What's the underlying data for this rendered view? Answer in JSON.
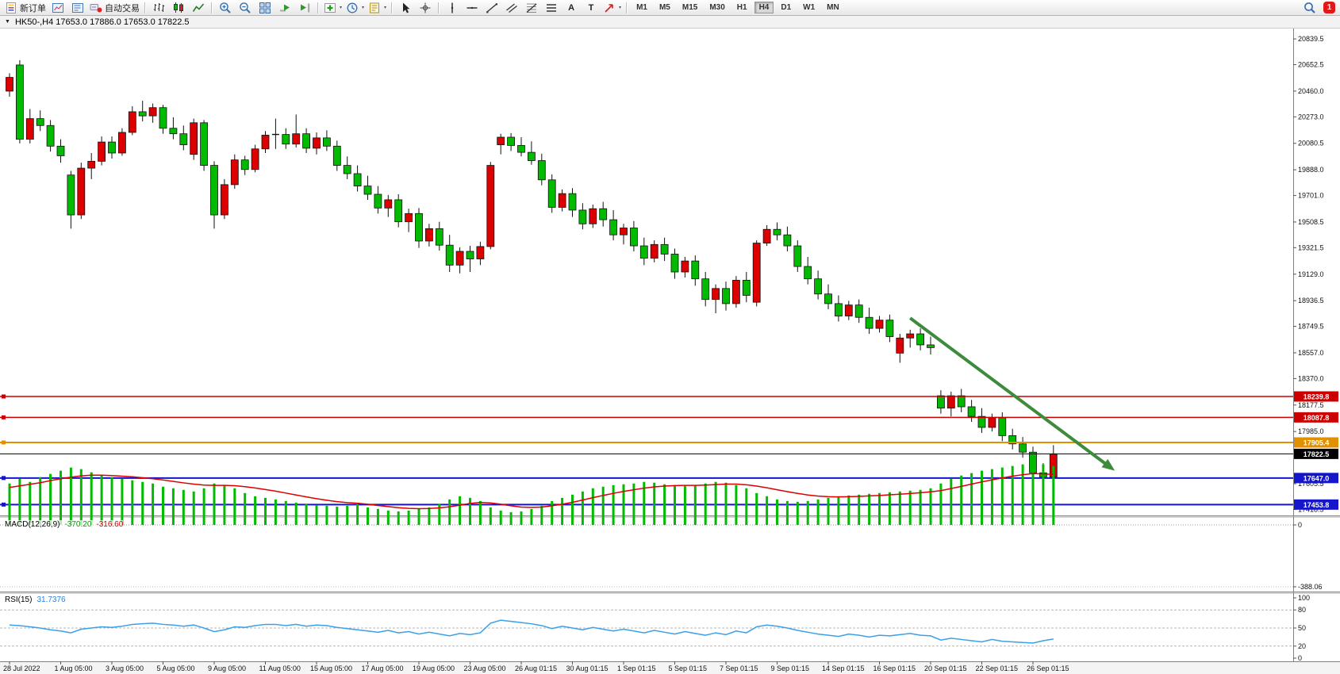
{
  "toolbar": {
    "buttons": [
      {
        "name": "new-order",
        "label": "新订单"
      },
      {
        "name": "chart-window"
      },
      {
        "name": "market-watch"
      },
      {
        "name": "autotrading",
        "label": "自动交易"
      },
      {
        "type": "sep"
      },
      {
        "name": "bar-chart"
      },
      {
        "name": "candlestick-chart"
      },
      {
        "name": "line-chart"
      },
      {
        "type": "sep"
      },
      {
        "name": "zoom-in"
      },
      {
        "name": "zoom-out"
      },
      {
        "name": "tile-windows"
      },
      {
        "name": "auto-scroll"
      },
      {
        "name": "chart-shift"
      },
      {
        "type": "sep"
      },
      {
        "name": "indicators-add",
        "caret": true
      },
      {
        "name": "periods",
        "caret": true
      },
      {
        "name": "templates",
        "caret": true
      },
      {
        "type": "sep"
      },
      {
        "name": "cursor"
      },
      {
        "name": "crosshair"
      },
      {
        "type": "sep"
      },
      {
        "name": "vertical-line"
      },
      {
        "name": "horizontal-line"
      },
      {
        "name": "trendline"
      },
      {
        "name": "channel"
      },
      {
        "name": "fibonacci"
      },
      {
        "name": "levels"
      },
      {
        "name": "text-tool",
        "label": "A"
      },
      {
        "name": "text-label-tool",
        "label": "T"
      },
      {
        "name": "arrows-tool",
        "caret": true
      },
      {
        "type": "sep"
      }
    ],
    "timeframes": [
      "M1",
      "M5",
      "M15",
      "M30",
      "H1",
      "H4",
      "D1",
      "W1",
      "MN"
    ],
    "active_timeframe": "H4",
    "notification_count": "1"
  },
  "chart_data": [
    {
      "type": "candlestick",
      "title": "HK50-,H4 17653.0 17886.0 17653.0 17822.5",
      "symbol": "HK50-",
      "timeframe": "H4",
      "ohlc_label": {
        "open": "17653.0",
        "high": "17886.0",
        "low": "17653.0",
        "close": "17822.5"
      },
      "up_color": "#dd0000",
      "down_color": "#00bb00",
      "wick_color": "#111111",
      "price_range": [
        17375,
        20915
      ],
      "y_ticks": [
        "20839.5",
        "20652.5",
        "20460.0",
        "20273.0",
        "20080.5",
        "19888.0",
        "19701.0",
        "19508.5",
        "19321.5",
        "19129.0",
        "18936.5",
        "18749.5",
        "18557.0",
        "18370.0",
        "18177.5",
        "17985.0",
        "17605.5",
        "17418.5"
      ],
      "hlines": [
        {
          "price": 18239.8,
          "color": "#cc0000",
          "width": 1.5,
          "badge": "18239.8",
          "handle": true
        },
        {
          "price": 18087.8,
          "color": "#cc0000",
          "width": 1.5,
          "badge": "18087.8",
          "handle": true
        },
        {
          "price": 17905.4,
          "color": "#e09000",
          "width": 2,
          "badge": "17905.4",
          "handle": true
        },
        {
          "price": 17822.5,
          "color": "#000000",
          "width": 1,
          "badge": "17822.5",
          "handle": false
        },
        {
          "price": 17647.0,
          "color": "#1515cc",
          "width": 2,
          "badge": "17647.0",
          "handle": true
        },
        {
          "price": 17453.8,
          "color": "#1515cc",
          "width": 2,
          "badge": "17453.8",
          "handle": true
        }
      ],
      "trend_arrow": {
        "from": {
          "index": 88,
          "price": 18810
        },
        "to": {
          "index": 108,
          "price": 17700
        },
        "color": "#3d8b3d"
      },
      "x_axis": {
        "label_every": 5,
        "labels": [
          "28 Jul 2022",
          "1 Aug 05:00",
          "3 Aug 05:00",
          "5 Aug 05:00",
          "9 Aug 05:00",
          "11 Aug 05:00",
          "15 Aug 05:00",
          "17 Aug 05:00",
          "19 Aug 05:00",
          "23 Aug 05:00",
          "26 Aug 01:15",
          "30 Aug 01:15",
          "1 Sep 01:15",
          "5 Sep 01:15",
          "7 Sep 01:15",
          "9 Sep 01:15",
          "14 Sep 01:15",
          "16 Sep 01:15",
          "20 Sep 01:15",
          "22 Sep 01:15",
          "26 Sep 01:15"
        ]
      },
      "candles": [
        [
          20460,
          20590,
          20420,
          20560
        ],
        [
          20650,
          20685,
          20080,
          20110
        ],
        [
          20110,
          20330,
          20080,
          20260
        ],
        [
          20260,
          20320,
          20170,
          20210
        ],
        [
          20210,
          20250,
          20020,
          20060
        ],
        [
          20060,
          20110,
          19940,
          19990
        ],
        [
          19850,
          19880,
          19460,
          19560
        ],
        [
          19560,
          19940,
          19530,
          19900
        ],
        [
          19900,
          20010,
          19820,
          19950
        ],
        [
          19950,
          20130,
          19920,
          20090
        ],
        [
          20090,
          20130,
          19970,
          20010
        ],
        [
          20010,
          20190,
          19990,
          20160
        ],
        [
          20160,
          20350,
          20140,
          20310
        ],
        [
          20310,
          20390,
          20240,
          20280
        ],
        [
          20280,
          20370,
          20230,
          20340
        ],
        [
          20340,
          20360,
          20150,
          20190
        ],
        [
          20190,
          20270,
          20110,
          20150
        ],
        [
          20150,
          20210,
          20030,
          20070
        ],
        [
          20000,
          20260,
          19960,
          20230
        ],
        [
          20230,
          20250,
          19880,
          19920
        ],
        [
          19920,
          19950,
          19460,
          19560
        ],
        [
          19560,
          19820,
          19530,
          19780
        ],
        [
          19780,
          20000,
          19750,
          19960
        ],
        [
          19960,
          19990,
          19850,
          19890
        ],
        [
          19890,
          20070,
          19870,
          20040
        ],
        [
          20040,
          20170,
          20010,
          20140
        ],
        [
          20140,
          20260,
          20040,
          20145
        ],
        [
          20145,
          20190,
          20040,
          20075
        ],
        [
          20075,
          20290,
          20050,
          20150
        ],
        [
          20150,
          20190,
          20010,
          20045
        ],
        [
          20045,
          20160,
          20000,
          20120
        ],
        [
          20120,
          20175,
          20025,
          20060
        ],
        [
          20060,
          20100,
          19880,
          19920
        ],
        [
          19920,
          19985,
          19820,
          19860
        ],
        [
          19860,
          19920,
          19730,
          19770
        ],
        [
          19770,
          19845,
          19670,
          19710
        ],
        [
          19710,
          19770,
          19570,
          19610
        ],
        [
          19610,
          19705,
          19545,
          19670
        ],
        [
          19670,
          19710,
          19470,
          19510
        ],
        [
          19510,
          19605,
          19435,
          19570
        ],
        [
          19570,
          19610,
          19320,
          19370
        ],
        [
          19370,
          19495,
          19330,
          19460
        ],
        [
          19460,
          19510,
          19300,
          19340
        ],
        [
          19340,
          19415,
          19145,
          19195
        ],
        [
          19195,
          19325,
          19135,
          19295
        ],
        [
          19295,
          19335,
          19145,
          19240
        ],
        [
          19240,
          19365,
          19195,
          19330
        ],
        [
          19330,
          19945,
          19310,
          19920
        ],
        [
          20070,
          20150,
          20000,
          20125
        ],
        [
          20125,
          20155,
          20025,
          20065
        ],
        [
          20065,
          20125,
          19985,
          20015
        ],
        [
          20015,
          20095,
          19925,
          19955
        ],
        [
          19955,
          20005,
          19775,
          19815
        ],
        [
          19815,
          19855,
          19575,
          19615
        ],
        [
          19615,
          19745,
          19585,
          19715
        ],
        [
          19715,
          19755,
          19545,
          19595
        ],
        [
          19595,
          19645,
          19455,
          19495
        ],
        [
          19495,
          19635,
          19465,
          19605
        ],
        [
          19605,
          19655,
          19475,
          19525
        ],
        [
          19525,
          19595,
          19375,
          19415
        ],
        [
          19415,
          19495,
          19345,
          19465
        ],
        [
          19465,
          19515,
          19295,
          19335
        ],
        [
          19335,
          19395,
          19195,
          19245
        ],
        [
          19245,
          19375,
          19215,
          19345
        ],
        [
          19345,
          19395,
          19225,
          19275
        ],
        [
          19275,
          19315,
          19095,
          19145
        ],
        [
          19145,
          19255,
          19105,
          19225
        ],
        [
          19225,
          19265,
          19045,
          19095
        ],
        [
          19095,
          19145,
          18895,
          18945
        ],
        [
          18945,
          19055,
          18845,
          19025
        ],
        [
          19025,
          19075,
          18865,
          18915
        ],
        [
          18915,
          19115,
          18885,
          19085
        ],
        [
          19085,
          19145,
          18925,
          18975
        ],
        [
          18925,
          19375,
          18895,
          19355
        ],
        [
          19355,
          19485,
          19335,
          19455
        ],
        [
          19455,
          19505,
          19375,
          19415
        ],
        [
          19415,
          19475,
          19295,
          19335
        ],
        [
          19335,
          19375,
          19145,
          19185
        ],
        [
          19185,
          19255,
          19055,
          19095
        ],
        [
          19095,
          19155,
          18945,
          18985
        ],
        [
          18985,
          19055,
          18875,
          18915
        ],
        [
          18915,
          18975,
          18785,
          18825
        ],
        [
          18825,
          18935,
          18795,
          18905
        ],
        [
          18905,
          18945,
          18775,
          18815
        ],
        [
          18815,
          18885,
          18695,
          18735
        ],
        [
          18735,
          18825,
          18705,
          18795
        ],
        [
          18795,
          18835,
          18635,
          18675
        ],
        [
          18555,
          18695,
          18485,
          18665
        ],
        [
          18665,
          18725,
          18595,
          18695
        ],
        [
          18695,
          18735,
          18575,
          18615
        ],
        [
          18615,
          18675,
          18545,
          18595
        ],
        [
          18245,
          18285,
          18115,
          18155
        ],
        [
          18155,
          18275,
          18095,
          18245
        ],
        [
          18245,
          18295,
          18125,
          18165
        ],
        [
          18165,
          18215,
          18055,
          18095
        ],
        [
          18095,
          18155,
          17975,
          18015
        ],
        [
          18015,
          18115,
          17985,
          18085
        ],
        [
          18085,
          18125,
          17915,
          17955
        ],
        [
          17955,
          18005,
          17855,
          17895
        ],
        [
          17895,
          17945,
          17795,
          17835
        ],
        [
          17835,
          17875,
          17655,
          17685
        ],
        [
          17685,
          17755,
          17635,
          17655
        ],
        [
          17653,
          17886,
          17653,
          17822.5
        ]
      ]
    },
    {
      "type": "bar",
      "name": "MACD(12,26,9)",
      "values_label": [
        "-370.20",
        "-316.60"
      ],
      "ylim": [
        -388.06,
        0
      ],
      "y_ticks": [
        "0",
        "-388.06"
      ],
      "colors": {
        "histogram": "#00bb00",
        "signal": "#dd0000"
      },
      "histogram": [
        -260,
        -290,
        -270,
        -300,
        -320,
        -340,
        -360,
        -350,
        -330,
        -310,
        -300,
        -290,
        -280,
        -270,
        -260,
        -240,
        -230,
        -220,
        -210,
        -230,
        -260,
        -250,
        -230,
        -200,
        -180,
        -170,
        -160,
        -150,
        -140,
        -130,
        -125,
        -120,
        -115,
        -120,
        -130,
        -110,
        -100,
        -90,
        -85,
        -90,
        -100,
        -110,
        -130,
        -160,
        -180,
        -170,
        -150,
        -110,
        -90,
        -80,
        -85,
        -100,
        -120,
        -150,
        -170,
        -190,
        -210,
        -230,
        -240,
        -250,
        -255,
        -260,
        -270,
        -265,
        -255,
        -250,
        -245,
        -250,
        -260,
        -270,
        -265,
        -250,
        -230,
        -200,
        -180,
        -160,
        -150,
        -145,
        -150,
        -160,
        -170,
        -180,
        -185,
        -190,
        -195,
        -200,
        -205,
        -210,
        -215,
        -220,
        -230,
        -260,
        -290,
        -310,
        -325,
        -340,
        -350,
        -360,
        -370,
        -380,
        -388,
        -380,
        -370.2
      ],
      "signal": [
        -235,
        -245,
        -255,
        -265,
        -278,
        -290,
        -300,
        -308,
        -312,
        -312,
        -310,
        -306,
        -302,
        -296,
        -290,
        -282,
        -273,
        -264,
        -256,
        -250,
        -248,
        -248,
        -246,
        -240,
        -232,
        -222,
        -212,
        -200,
        -188,
        -176,
        -165,
        -155,
        -146,
        -140,
        -136,
        -130,
        -122,
        -115,
        -108,
        -104,
        -102,
        -103,
        -107,
        -114,
        -124,
        -135,
        -141,
        -138,
        -130,
        -120,
        -112,
        -110,
        -112,
        -120,
        -130,
        -142,
        -156,
        -171,
        -185,
        -198,
        -210,
        -221,
        -231,
        -239,
        -244,
        -247,
        -248,
        -248,
        -250,
        -253,
        -256,
        -256,
        -252,
        -244,
        -233,
        -221,
        -209,
        -198,
        -188,
        -181,
        -177,
        -176,
        -177,
        -179,
        -182,
        -185,
        -189,
        -193,
        -197,
        -202,
        -208,
        -215,
        -228,
        -242,
        -256,
        -270,
        -283,
        -295,
        -306,
        -315,
        -322,
        -320,
        -316.6
      ]
    },
    {
      "type": "line",
      "name": "RSI(15)",
      "value_label": "31.7376",
      "ylim": [
        0,
        100
      ],
      "levels": [
        80,
        50,
        20
      ],
      "y_ticks": [
        "100",
        "80",
        "50",
        "20",
        "0"
      ],
      "color": "#3aa0e8",
      "values": [
        55,
        54,
        52,
        50,
        47,
        45,
        42,
        48,
        50,
        52,
        51,
        53,
        56,
        57,
        58,
        56,
        55,
        53,
        55,
        50,
        44,
        47,
        52,
        51,
        54,
        56,
        56,
        54,
        56,
        53,
        55,
        54,
        51,
        49,
        47,
        45,
        43,
        46,
        42,
        44,
        40,
        43,
        40,
        37,
        41,
        39,
        42,
        58,
        63,
        61,
        59,
        57,
        54,
        49,
        53,
        50,
        47,
        51,
        48,
        45,
        48,
        45,
        42,
        46,
        43,
        40,
        44,
        41,
        38,
        42,
        39,
        45,
        42,
        52,
        55,
        53,
        50,
        46,
        43,
        40,
        38,
        36,
        40,
        38,
        35,
        38,
        37,
        39,
        41,
        38,
        37,
        30,
        33,
        31,
        29,
        27,
        31,
        28,
        27,
        26,
        25,
        29,
        31.7
      ]
    }
  ]
}
